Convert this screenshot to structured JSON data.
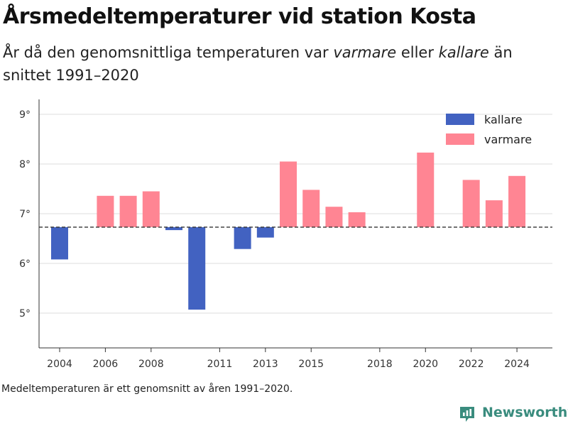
{
  "title": "Årsmedeltemperaturer vid station Kosta",
  "subtitle": {
    "part1": "År då den genomsnittliga temperaturen var ",
    "warmer": "varmare",
    "part2": " eller ",
    "colder": "kallare",
    "part3": " än snittet 1991–2020"
  },
  "note": "Medeltemperaturen är ett genomsnitt av åren 1991–2020.",
  "brand": "Newsworthy",
  "colors": {
    "kallare": "#4262c1",
    "varmare": "#ff8593",
    "grid": "#dedede",
    "reference": "#333333",
    "axis": "#333333",
    "brand": "#3a8c7e"
  },
  "chart_data": {
    "type": "bar",
    "baseline": 6.73,
    "ylim": [
      4.3,
      9.3
    ],
    "y_ticks": [
      5,
      6,
      7,
      8,
      9
    ],
    "y_tick_labels": [
      "5°",
      "6°",
      "7°",
      "8°",
      "9°"
    ],
    "xlim": [
      2003.1,
      2025.55
    ],
    "x_ticks": [
      2004,
      2006,
      2008,
      2011,
      2013,
      2015,
      2018,
      2020,
      2022,
      2024
    ],
    "legend": [
      {
        "key": "kallare",
        "label": "kallare"
      },
      {
        "key": "varmare",
        "label": "varmare"
      }
    ],
    "legend_position": "top-right",
    "grid": true,
    "series": [
      {
        "name": "kallare",
        "x": [
          2004,
          2009,
          2010,
          2012,
          2013
        ],
        "values": [
          6.08,
          6.67,
          5.07,
          6.29,
          6.52
        ]
      },
      {
        "name": "varmare",
        "x": [
          2006,
          2007,
          2008,
          2014,
          2015,
          2016,
          2017,
          2020,
          2022,
          2023,
          2024
        ],
        "values": [
          7.36,
          7.36,
          7.45,
          8.05,
          7.48,
          7.14,
          7.03,
          8.23,
          7.68,
          7.27,
          7.76
        ]
      }
    ]
  }
}
